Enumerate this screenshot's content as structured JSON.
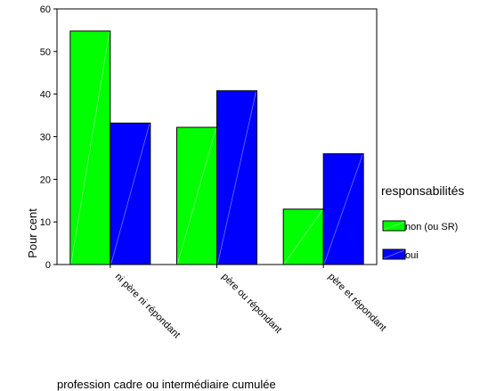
{
  "chart_data": {
    "type": "bar",
    "categories": [
      "ni père ni répondant",
      "père ou répondant",
      "père et répondant"
    ],
    "series": [
      {
        "name": "non (ou SR)",
        "values": [
          54.8,
          32.2,
          13.0
        ],
        "color": "#00ff00"
      },
      {
        "name": "oui",
        "values": [
          33.2,
          40.8,
          26.0
        ],
        "color": "#0000ff"
      }
    ],
    "xlabel": "profession cadre ou intermédiaire cumulée",
    "ylabel": "Pour cent",
    "ylim": [
      0,
      60
    ],
    "yticks": [
      0,
      10,
      20,
      30,
      40,
      50,
      60
    ],
    "legend": {
      "title": "responsabilités",
      "position": "right"
    },
    "grid": false
  }
}
